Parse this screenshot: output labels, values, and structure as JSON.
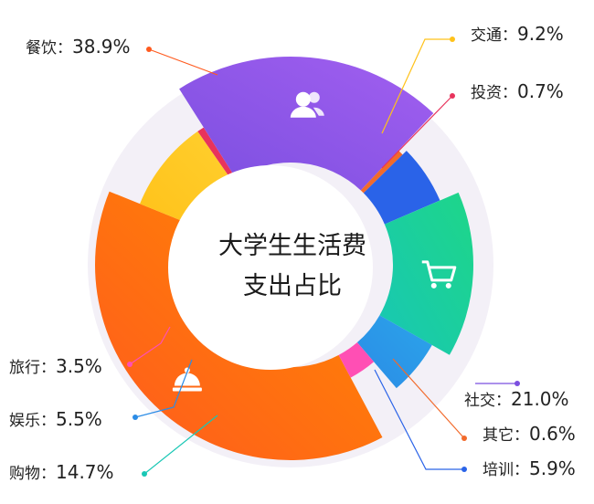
{
  "chart_data": {
    "type": "pie",
    "title_lines": [
      "大学生生活费",
      "支出占比"
    ],
    "slices": [
      {
        "name": "餐饮",
        "value": 38.9,
        "value_label": "38.9%",
        "color": "#ff5a1e",
        "color2": "#ff8a00",
        "icon": "cloche-icon"
      },
      {
        "name": "交通",
        "value": 9.2,
        "value_label": "9.2%",
        "color": "#ffc21a",
        "color2": "#ffcf2e",
        "icon": ""
      },
      {
        "name": "投资",
        "value": 0.7,
        "value_label": "0.7%",
        "color": "#e8335c",
        "color2": "#e8335c",
        "icon": ""
      },
      {
        "name": "社交",
        "value": 21.0,
        "value_label": "21.0%",
        "color": "#7b4fe0",
        "color2": "#a25ff0",
        "icon": "users-icon"
      },
      {
        "name": "其它",
        "value": 0.6,
        "value_label": "0.6%",
        "color": "#f26a2b",
        "color2": "#f26a2b",
        "icon": ""
      },
      {
        "name": "培训",
        "value": 5.9,
        "value_label": "5.9%",
        "color": "#2a63e8",
        "color2": "#2a63e8",
        "icon": ""
      },
      {
        "name": "购物",
        "value": 14.7,
        "value_label": "14.7%",
        "color": "#18c7b5",
        "color2": "#1ed688",
        "icon": "cart-icon"
      },
      {
        "name": "娱乐",
        "value": 5.5,
        "value_label": "5.5%",
        "color": "#2b8ce6",
        "color2": "#2ba4ea",
        "icon": ""
      },
      {
        "name": "旅行",
        "value": 3.5,
        "value_label": "3.5%",
        "color": "#ff4fb4",
        "color2": "#ff4fb4",
        "icon": ""
      }
    ]
  }
}
